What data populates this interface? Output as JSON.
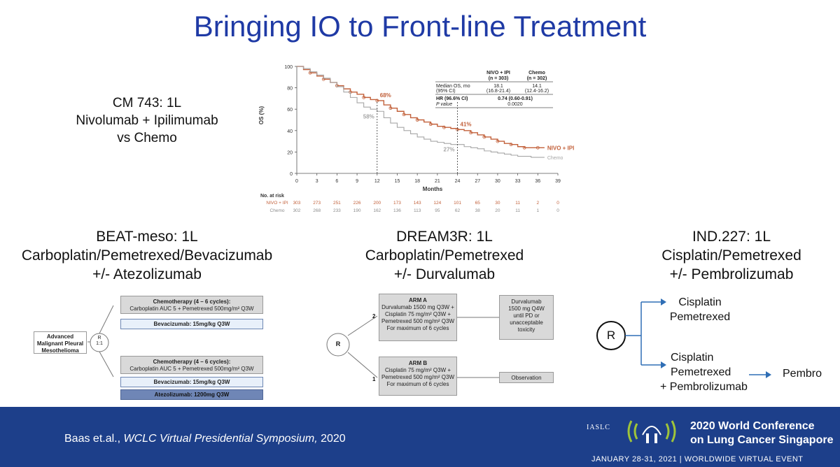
{
  "slide_title": "Bringing IO to Front-line Treatment",
  "cm743": {
    "line1": "CM 743: 1L",
    "line2": "Nivolumab + Ipilimumab",
    "line3": "vs Chemo"
  },
  "chart_data": {
    "type": "line",
    "xlabel": "Months",
    "ylabel": "OS (%)",
    "xlim": [
      0,
      39
    ],
    "ylim": [
      0,
      100
    ],
    "xticks": [
      "0",
      "3",
      "6",
      "9",
      "12",
      "15",
      "18",
      "21",
      "24",
      "27",
      "30",
      "33",
      "36",
      "39"
    ],
    "yticks": [
      "0",
      "20",
      "40",
      "60",
      "80",
      "100"
    ],
    "series": [
      {
        "name": "NIVO + IPI",
        "color": "#c2603a",
        "x": [
          0,
          1,
          2,
          3,
          4,
          5,
          6,
          7,
          8,
          9,
          10,
          11,
          12,
          13,
          14,
          15,
          16,
          17,
          18,
          19,
          20,
          21,
          22,
          23,
          24,
          25,
          26,
          27,
          28,
          29,
          30,
          31,
          32,
          33,
          34,
          35,
          36,
          37
        ],
        "y": [
          100,
          97,
          94,
          91,
          88,
          85,
          82,
          79,
          76,
          74,
          71,
          69,
          68,
          64,
          61,
          58,
          55,
          52,
          50,
          48,
          46,
          44,
          43,
          42,
          41,
          40,
          38,
          36,
          34,
          32,
          30,
          28,
          27,
          25,
          24,
          24,
          24,
          24
        ]
      },
      {
        "name": "Chemo",
        "color": "#a6a6a6",
        "x": [
          0,
          1,
          2,
          3,
          4,
          5,
          6,
          7,
          8,
          9,
          10,
          11,
          12,
          13,
          14,
          15,
          16,
          17,
          18,
          19,
          20,
          21,
          22,
          23,
          24,
          25,
          26,
          27,
          28,
          29,
          30,
          31,
          32,
          33,
          34,
          35,
          36,
          37
        ],
        "y": [
          100,
          98,
          95,
          92,
          89,
          85,
          81,
          76,
          71,
          66,
          62,
          60,
          58,
          52,
          47,
          43,
          40,
          37,
          34,
          32,
          30,
          29,
          28,
          27,
          27,
          25,
          24,
          23,
          21,
          20,
          19,
          18,
          17,
          16,
          16,
          15,
          15,
          15
        ]
      }
    ],
    "annotations": [
      {
        "text": "68%",
        "x": 12,
        "y": 68,
        "series": "NIVO + IPI"
      },
      {
        "text": "58%",
        "x": 12,
        "y": 58,
        "series": "Chemo"
      },
      {
        "text": "41%",
        "x": 24,
        "y": 41,
        "series": "NIVO + IPI"
      },
      {
        "text": "27%",
        "x": 24,
        "y": 27,
        "series": "Chemo"
      }
    ],
    "stats_table": {
      "col1": "NIVO + IPI",
      "col1n": "(n = 303)",
      "col2": "Chemo",
      "col2n": "(n = 302)",
      "rows": [
        {
          "label": "Median OS, mo",
          "label2": "(95% CI)",
          "v1": "18.1",
          "v1b": "(16.8-21.4)",
          "v2": "14.1",
          "v2b": "(12.4-16.2)"
        },
        {
          "label": "HR (96.6% CI)",
          "label2": "P value",
          "v1": "0.74 (0.60-0.91)",
          "v2": "0.0020"
        }
      ]
    },
    "at_risk": {
      "title": "No. at risk",
      "rows": [
        {
          "name": "NIVO + IPI",
          "color": "#c2603a",
          "values": [
            "303",
            "273",
            "251",
            "226",
            "200",
            "173",
            "143",
            "124",
            "101",
            "65",
            "30",
            "11",
            "2",
            "0"
          ]
        },
        {
          "name": "Chemo",
          "color": "#8c8c8c",
          "values": [
            "302",
            "268",
            "233",
            "190",
            "162",
            "136",
            "113",
            "95",
            "62",
            "38",
            "20",
            "11",
            "1",
            "0"
          ]
        }
      ]
    }
  },
  "beat": {
    "line1": "BEAT-meso: 1L",
    "line2": "Carboplatin/Pemetrexed/Bevacizumab",
    "line3": "+/- Atezolizumab",
    "patient": "Advanced Malignant Pleural Mesothelioma",
    "r": "R",
    "ratio": "1:1",
    "chemo_title": "Chemotherapy (4 – 6 cycles):",
    "chemo_text": "Carboplatin AUC 5 + Pemetrexed 500mg/m² Q3W",
    "bev": "Bevacizumab: 15mg/kg Q3W",
    "atezo": "Atezolizumab: 1200mg Q3W"
  },
  "dream": {
    "line1": "DREAM3R: 1L",
    "line2": "Carboplatin/Pemetrexed",
    "line3": "+/- Durvalumab",
    "r": "R",
    "num2": "2",
    "num1": "1",
    "arm_a_title": "ARM A",
    "arm_a": [
      "Durvalumab 1500 mg Q3W +",
      "Cisplatin 75 mg/m² Q3W +",
      "Pemetrexed 500 mg/m² Q3W",
      "For maximum of 6 cycles"
    ],
    "arm_b_title": "ARM B",
    "arm_b": [
      "Cisplatin 75 mg/m² Q3W +",
      "Pemetrexed 500 mg/m² Q3W",
      "For maximum of 6 cycles"
    ],
    "maint": [
      "Durvalumab",
      "1500 mg Q4W",
      "until PD or",
      "unacceptable",
      "toxicity"
    ],
    "obs": "Observation"
  },
  "ind": {
    "line1": "IND.227: 1L",
    "line2": "Cisplatin/Pemetrexed",
    "line3": "+/- Pembrolizumab",
    "r": "R",
    "arm1a": "Cisplatin",
    "arm1b": "Pemetrexed",
    "arm2a": "Cisplatin",
    "arm2b": "Pemetrexed",
    "arm2c": "+ Pembrolizumab",
    "pembro": "Pembro"
  },
  "footer": {
    "ref_prefix": "Baas et.al., ",
    "ref_italic": "WCLC Virtual Presidential Symposium,",
    "ref_year": " 2020",
    "org": "IASLC",
    "conf1": "2020 World Conference",
    "conf2": "on Lung Cancer Singapore",
    "dates": "JANUARY 28-31, 2021 | WORLDWIDE VIRTUAL EVENT"
  }
}
